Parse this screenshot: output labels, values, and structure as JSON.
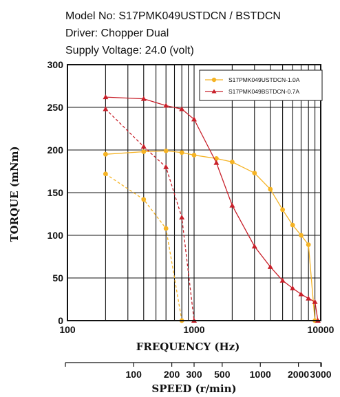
{
  "header": {
    "line1": "Model No: S17PMK049USTDCN / BSTDCN",
    "line2": "Driver: Chopper Dual",
    "line3": "Supply Voltage: 24.0 (volt)"
  },
  "chart_data": {
    "type": "line",
    "xscale": "log",
    "xlim": [
      100,
      10000
    ],
    "ylim": [
      0,
      300
    ],
    "xlabel": "FREQUENCY (Hz)",
    "ylabel": "TORQUE (mNm)",
    "x_tick_labels": [
      {
        "value": 100,
        "label": "100"
      },
      {
        "value": 1000,
        "label": "1000"
      },
      {
        "value": 10000,
        "label": "10000"
      }
    ],
    "y_ticks": [
      0,
      50,
      100,
      150,
      200,
      250,
      300
    ],
    "secondary_axis": {
      "label": "SPEED (r/min)",
      "ticks": [
        100,
        200,
        300,
        500,
        1000,
        2000,
        3000
      ]
    },
    "grid": true,
    "legend": "top-right",
    "series": [
      {
        "name": "S17PMK049USTDCN-1.0A",
        "color": "#f5b324",
        "marker": "circle",
        "pull_out": {
          "x": [
            200,
            400,
            600,
            800,
            1000,
            1500,
            2000,
            3000,
            4000,
            5000,
            6000,
            7000,
            8000,
            9000
          ],
          "y": [
            195,
            198,
            199,
            197,
            194,
            190,
            186,
            173,
            154,
            130,
            112,
            100,
            89,
            0
          ]
        },
        "pull_in": {
          "x": [
            200,
            400,
            600,
            800
          ],
          "y": [
            172,
            142,
            108,
            0
          ]
        }
      },
      {
        "name": "S17PMK049BSTDCN-0.7A",
        "color": "#c8202a",
        "marker": "triangle",
        "pull_out": {
          "x": [
            200,
            400,
            600,
            800,
            1000,
            1500,
            2000,
            3000,
            4000,
            5000,
            6000,
            7000,
            8000,
            9000,
            9500
          ],
          "y": [
            262,
            260,
            252,
            248,
            236,
            185,
            135,
            87,
            63,
            47,
            38,
            31,
            26,
            22,
            0
          ]
        },
        "pull_in": {
          "x": [
            200,
            400,
            600,
            800,
            1000
          ],
          "y": [
            248,
            204,
            180,
            121,
            0
          ]
        }
      }
    ]
  }
}
